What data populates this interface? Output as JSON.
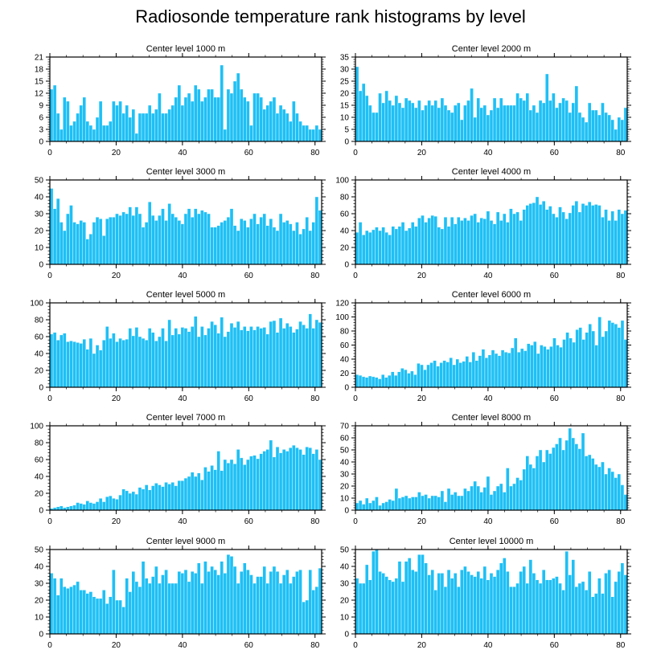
{
  "figure": {
    "title": "Radiosonde temperature rank histograms by level"
  },
  "colors": {
    "bar_fill": "#1ec0f5",
    "bar_edge": "#ffffff",
    "axis": "#000000"
  },
  "chart_data": [
    {
      "type": "bar",
      "title": "Center level 1000 m",
      "xlabel": "",
      "ylabel": "",
      "xlim": [
        0,
        82
      ],
      "ylim": [
        0,
        21
      ],
      "xticks": [
        0,
        20,
        40,
        60,
        80
      ],
      "yticks": [
        0,
        3,
        6,
        9,
        12,
        15,
        18,
        21
      ],
      "values": [
        13,
        14,
        7,
        3,
        11,
        10,
        4,
        5,
        7,
        9,
        11,
        5,
        4,
        3,
        6,
        10,
        4,
        4,
        5,
        10,
        9,
        10,
        7,
        9,
        6,
        8,
        2,
        7,
        7,
        7,
        9,
        7,
        8,
        12,
        7,
        7,
        8,
        9,
        11,
        14,
        9,
        11,
        12,
        10,
        14,
        13,
        10,
        11,
        13,
        13,
        11,
        11,
        19,
        3,
        13,
        12,
        15,
        17,
        13,
        11,
        10,
        4,
        12,
        12,
        11,
        8,
        9,
        10,
        11,
        7,
        9,
        8,
        7,
        5,
        10,
        7,
        5,
        4,
        4,
        3,
        3,
        4,
        3
      ]
    },
    {
      "type": "bar",
      "title": "Center level 2000 m",
      "xlabel": "",
      "ylabel": "",
      "xlim": [
        0,
        82
      ],
      "ylim": [
        0,
        35
      ],
      "xticks": [
        0,
        20,
        40,
        60,
        80
      ],
      "yticks": [
        0,
        5,
        10,
        15,
        20,
        25,
        30,
        35
      ],
      "values": [
        31,
        21,
        24,
        19,
        15,
        12,
        12,
        20,
        16,
        21,
        17,
        15,
        19,
        16,
        14,
        18,
        17,
        16,
        14,
        17,
        13,
        15,
        17,
        15,
        17,
        14,
        18,
        15,
        13,
        12,
        15,
        16,
        9,
        15,
        17,
        22,
        10,
        18,
        14,
        15,
        11,
        13,
        18,
        14,
        18,
        15,
        15,
        15,
        15,
        20,
        18,
        17,
        20,
        13,
        15,
        12,
        17,
        16,
        28,
        17,
        20,
        14,
        16,
        18,
        17,
        12,
        16,
        23,
        12,
        10,
        8,
        16,
        13,
        13,
        11,
        16,
        12,
        11,
        9,
        5,
        10,
        9,
        14
      ]
    },
    {
      "type": "bar",
      "title": "Center level 3000 m",
      "xlabel": "",
      "ylabel": "",
      "xlim": [
        0,
        82
      ],
      "ylim": [
        0,
        50
      ],
      "xticks": [
        0,
        20,
        40,
        60,
        80
      ],
      "yticks": [
        0,
        10,
        20,
        30,
        40,
        50
      ],
      "values": [
        45,
        33,
        39,
        25,
        20,
        30,
        35,
        25,
        24,
        26,
        25,
        15,
        18,
        25,
        28,
        27,
        17,
        27,
        28,
        28,
        30,
        29,
        31,
        30,
        34,
        29,
        34,
        30,
        22,
        25,
        37,
        29,
        26,
        29,
        33,
        26,
        36,
        30,
        28,
        26,
        24,
        30,
        33,
        28,
        33,
        30,
        32,
        31,
        30,
        22,
        22,
        23,
        25,
        26,
        28,
        33,
        23,
        20,
        27,
        26,
        22,
        27,
        30,
        24,
        28,
        30,
        23,
        27,
        22,
        20,
        30,
        25,
        26,
        24,
        20,
        25,
        18,
        21,
        28,
        20,
        25,
        40,
        32
      ]
    },
    {
      "type": "bar",
      "title": "Center level 4000 m",
      "xlabel": "",
      "ylabel": "",
      "xlim": [
        0,
        82
      ],
      "ylim": [
        0,
        100
      ],
      "xticks": [
        0,
        20,
        40,
        60,
        80
      ],
      "yticks": [
        0,
        20,
        40,
        60,
        80,
        100
      ],
      "values": [
        38,
        50,
        35,
        40,
        38,
        41,
        44,
        40,
        44,
        38,
        35,
        45,
        42,
        45,
        50,
        40,
        43,
        50,
        45,
        55,
        58,
        50,
        55,
        58,
        57,
        44,
        42,
        56,
        45,
        56,
        48,
        56,
        52,
        55,
        52,
        58,
        60,
        50,
        55,
        54,
        63,
        52,
        48,
        62,
        52,
        60,
        50,
        66,
        60,
        62,
        52,
        65,
        70,
        72,
        73,
        80,
        71,
        75,
        65,
        69,
        60,
        56,
        68,
        62,
        54,
        61,
        70,
        75,
        62,
        72,
        70,
        74,
        70,
        71,
        70,
        56,
        65,
        52,
        63,
        52,
        65,
        60,
        64
      ]
    },
    {
      "type": "bar",
      "title": "Center level 5000 m",
      "xlabel": "",
      "ylabel": "",
      "xlim": [
        0,
        82
      ],
      "ylim": [
        0,
        100
      ],
      "xticks": [
        0,
        20,
        40,
        60,
        80
      ],
      "yticks": [
        0,
        20,
        40,
        60,
        80,
        100
      ],
      "values": [
        63,
        65,
        56,
        62,
        64,
        54,
        55,
        54,
        53,
        52,
        57,
        45,
        58,
        40,
        50,
        44,
        56,
        72,
        58,
        64,
        54,
        58,
        56,
        57,
        70,
        61,
        71,
        60,
        58,
        56,
        70,
        65,
        55,
        60,
        70,
        55,
        80,
        62,
        70,
        63,
        71,
        70,
        66,
        72,
        84,
        60,
        72,
        62,
        70,
        78,
        74,
        64,
        83,
        60,
        66,
        76,
        71,
        78,
        68,
        72,
        67,
        72,
        68,
        72,
        70,
        71,
        63,
        78,
        79,
        65,
        82,
        70,
        76,
        72,
        65,
        69,
        78,
        74,
        70,
        87,
        70,
        80,
        77
      ]
    },
    {
      "type": "bar",
      "title": "Center level 6000 m",
      "xlabel": "",
      "ylabel": "",
      "xlim": [
        0,
        82
      ],
      "ylim": [
        0,
        120
      ],
      "xticks": [
        0,
        20,
        40,
        60,
        80
      ],
      "yticks": [
        0,
        20,
        40,
        60,
        80,
        100,
        120
      ],
      "values": [
        18,
        17,
        15,
        14,
        16,
        15,
        14,
        12,
        18,
        14,
        17,
        22,
        17,
        22,
        27,
        25,
        20,
        23,
        18,
        34,
        32,
        25,
        32,
        35,
        38,
        30,
        35,
        38,
        36,
        42,
        32,
        40,
        35,
        37,
        44,
        36,
        50,
        38,
        45,
        54,
        42,
        46,
        53,
        48,
        45,
        53,
        50,
        49,
        56,
        70,
        50,
        55,
        52,
        62,
        60,
        65,
        48,
        60,
        58,
        54,
        58,
        70,
        60,
        57,
        68,
        78,
        70,
        64,
        82,
        85,
        68,
        78,
        90,
        80,
        60,
        100,
        72,
        80,
        95,
        92,
        90,
        85,
        95,
        68
      ]
    },
    {
      "type": "bar",
      "title": "Center level 7000 m",
      "xlabel": "",
      "ylabel": "",
      "xlim": [
        0,
        82
      ],
      "ylim": [
        0,
        100
      ],
      "xticks": [
        0,
        20,
        40,
        60,
        80
      ],
      "yticks": [
        0,
        20,
        40,
        60,
        80,
        100
      ],
      "values": [
        2,
        3,
        4,
        5,
        3,
        4,
        5,
        6,
        9,
        8,
        7,
        11,
        9,
        8,
        10,
        14,
        10,
        16,
        17,
        14,
        13,
        18,
        25,
        23,
        20,
        22,
        19,
        27,
        25,
        30,
        24,
        29,
        32,
        30,
        28,
        33,
        31,
        33,
        29,
        35,
        35,
        38,
        40,
        45,
        40,
        44,
        36,
        51,
        46,
        53,
        48,
        70,
        47,
        60,
        56,
        60,
        55,
        72,
        62,
        54,
        60,
        64,
        65,
        61,
        67,
        70,
        72,
        83,
        63,
        75,
        68,
        72,
        70,
        74,
        77,
        74,
        72,
        66,
        75,
        74,
        67,
        72,
        60
      ]
    },
    {
      "type": "bar",
      "title": "Center level 8000 m",
      "xlabel": "",
      "ylabel": "",
      "xlim": [
        0,
        82
      ],
      "ylim": [
        0,
        70
      ],
      "xticks": [
        0,
        20,
        40,
        60,
        80
      ],
      "yticks": [
        0,
        10,
        20,
        30,
        40,
        50,
        60,
        70
      ],
      "values": [
        6,
        8,
        5,
        10,
        6,
        8,
        11,
        4,
        6,
        7,
        9,
        8,
        18,
        10,
        11,
        12,
        10,
        11,
        11,
        15,
        12,
        13,
        10,
        12,
        12,
        11,
        16,
        7,
        18,
        13,
        15,
        12,
        12,
        18,
        16,
        20,
        24,
        20,
        15,
        19,
        28,
        13,
        16,
        20,
        22,
        15,
        35,
        20,
        22,
        27,
        25,
        34,
        45,
        38,
        35,
        45,
        50,
        40,
        50,
        47,
        52,
        55,
        60,
        50,
        58,
        68,
        60,
        55,
        51,
        64,
        45,
        46,
        43,
        38,
        36,
        40,
        30,
        35,
        32,
        27,
        30,
        21,
        13
      ]
    },
    {
      "type": "bar",
      "title": "Center level 9000 m",
      "xlabel": "",
      "ylabel": "",
      "xlim": [
        0,
        82
      ],
      "ylim": [
        0,
        50
      ],
      "xticks": [
        0,
        20,
        40,
        60,
        80
      ],
      "yticks": [
        0,
        10,
        20,
        30,
        40,
        50
      ],
      "values": [
        36,
        33,
        23,
        33,
        28,
        27,
        28,
        29,
        31,
        26,
        26,
        24,
        25,
        22,
        21,
        21,
        26,
        18,
        22,
        38,
        20,
        20,
        16,
        33,
        25,
        37,
        31,
        28,
        43,
        33,
        30,
        34,
        40,
        30,
        35,
        38,
        30,
        30,
        30,
        37,
        36,
        38,
        31,
        37,
        36,
        42,
        30,
        43,
        37,
        40,
        38,
        35,
        43,
        36,
        47,
        46,
        40,
        30,
        37,
        42,
        38,
        35,
        30,
        34,
        34,
        40,
        30,
        37,
        40,
        37,
        30,
        35,
        38,
        30,
        34,
        37,
        38,
        19,
        20,
        38,
        26,
        28,
        39
      ]
    },
    {
      "type": "bar",
      "title": "Center level 10000 m",
      "xlabel": "",
      "ylabel": "",
      "xlim": [
        0,
        82
      ],
      "ylim": [
        0,
        50
      ],
      "xticks": [
        0,
        20,
        40,
        60,
        80
      ],
      "yticks": [
        0,
        10,
        20,
        30,
        40,
        50
      ],
      "values": [
        33,
        30,
        30,
        41,
        32,
        49,
        50,
        37,
        36,
        34,
        32,
        31,
        33,
        43,
        31,
        43,
        45,
        38,
        37,
        47,
        47,
        42,
        35,
        38,
        26,
        36,
        36,
        28,
        38,
        33,
        36,
        28,
        38,
        40,
        37,
        35,
        34,
        37,
        33,
        40,
        32,
        36,
        34,
        38,
        42,
        45,
        37,
        28,
        28,
        30,
        37,
        40,
        30,
        44,
        36,
        32,
        30,
        38,
        32,
        32,
        33,
        34,
        30,
        26,
        49,
        35,
        44,
        28,
        30,
        31,
        26,
        37,
        22,
        24,
        33,
        24,
        36,
        38,
        22,
        31,
        37,
        42,
        35
      ]
    }
  ]
}
